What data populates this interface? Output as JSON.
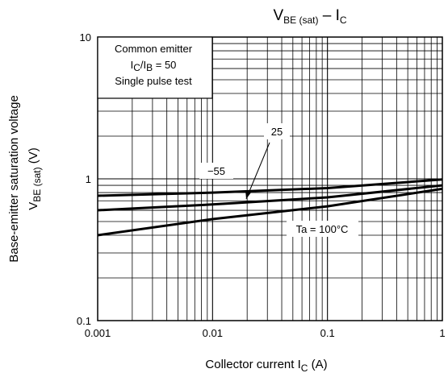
{
  "chart_data": {
    "type": "line",
    "title": {
      "main": "V",
      "main_sub": "BE (sat)",
      "dash": " – I",
      "dash_sub": "C"
    },
    "xaxis": {
      "label_text": "Collector current   I",
      "label_sub": "C",
      "label_unit": "   (A)",
      "scale": "log",
      "range": [
        0.001,
        1
      ],
      "tick_labels": [
        "0.001",
        "0.01",
        "0.1",
        "1"
      ],
      "tick_values": [
        0.001,
        0.01,
        0.1,
        1
      ]
    },
    "yaxis": {
      "label_line1": "Base-emitter saturation voltage",
      "label_line2_main": "V",
      "label_line2_sub": "BE (sat)",
      "label_line2_unit": "   (V)",
      "scale": "log",
      "range": [
        0.1,
        10
      ],
      "tick_labels": [
        "0.1",
        "1",
        "10"
      ],
      "tick_values": [
        0.1,
        1,
        10
      ]
    },
    "grid": true,
    "note": {
      "line1": "Common emitter",
      "line2_a": "I",
      "line2_a_sub": "C",
      "line2_b": "/I",
      "line2_b_sub": "B",
      "line2_c": " = 50",
      "line3": "Single pulse test"
    },
    "series": [
      {
        "name": "−55",
        "x": [
          0.001,
          0.01,
          0.1,
          1
        ],
        "y": [
          0.76,
          0.8,
          0.86,
          0.99
        ]
      },
      {
        "name": "25",
        "x": [
          0.001,
          0.01,
          0.1,
          1
        ],
        "y": [
          0.6,
          0.66,
          0.74,
          0.9
        ]
      },
      {
        "name": "Ta = 100°C",
        "x": [
          0.001,
          0.01,
          0.1,
          1
        ],
        "y": [
          0.4,
          0.52,
          0.64,
          0.85
        ]
      }
    ]
  }
}
